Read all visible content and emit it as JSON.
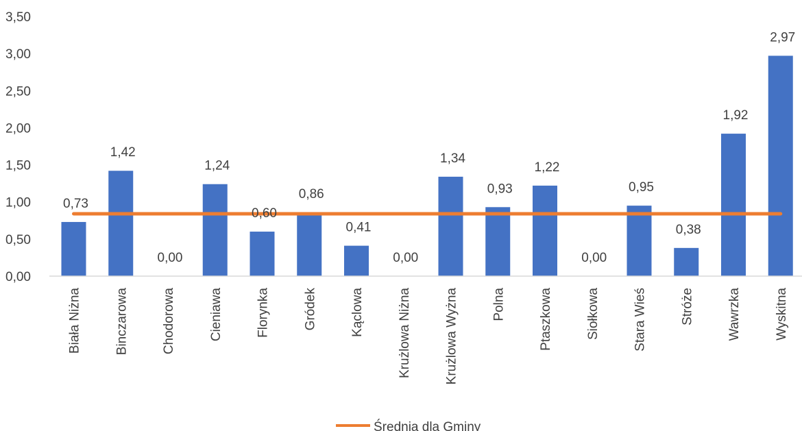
{
  "chart_data": {
    "type": "bar",
    "categories": [
      "Biała Niżna",
      "Binczarowa",
      "Chodorowa",
      "Cieniawa",
      "Florynka",
      "Gródek",
      "Kąclowa",
      "Krużlowa Niżna",
      "Krużlowa Wyżna",
      "Polna",
      "Ptaszkowa",
      "Siołkowa",
      "Stara Wieś",
      "Stróże",
      "Wawrzka",
      "Wyskitna"
    ],
    "series": [
      {
        "values": [
          0.73,
          1.42,
          0.0,
          1.24,
          0.6,
          0.86,
          0.41,
          0.0,
          1.34,
          0.93,
          1.22,
          0.0,
          0.95,
          0.38,
          1.92,
          2.97
        ],
        "data_labels": [
          "0,73",
          "1,42",
          "0,00",
          "1,24",
          "0,60",
          "0,86",
          "0,41",
          "0,00",
          "1,34",
          "0,93",
          "1,22",
          "0,00",
          "0,95",
          "0,38",
          "1,92",
          "2,97"
        ],
        "color": "#4472C4"
      },
      {
        "name": "Średnia dla Gminy",
        "type": "line",
        "value": 0.84,
        "color": "#ED7D31"
      }
    ],
    "y_ticks": [
      "0,00",
      "0,50",
      "1,00",
      "1,50",
      "2,00",
      "2,50",
      "3,00",
      "3,50"
    ],
    "ylim": [
      0,
      3.5
    ],
    "grid": false,
    "legend": "bottom"
  }
}
